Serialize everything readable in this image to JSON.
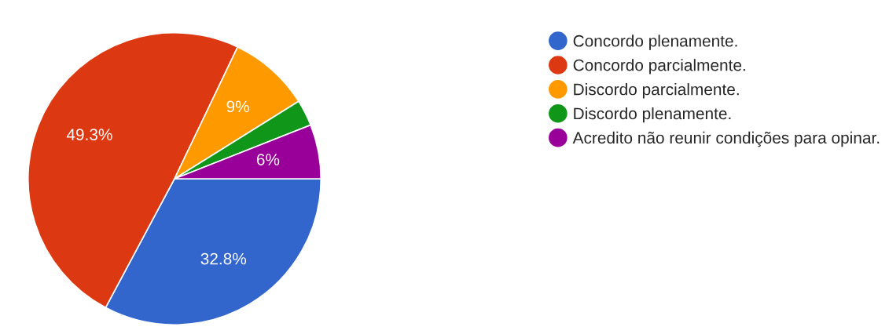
{
  "chart_data": {
    "type": "pie",
    "categories": [
      "Concordo plenamente.",
      "Concordo parcialmente.",
      "Discordo parcialmente.",
      "Discordo plenamente.",
      "Acredito não reunir condições para opinar."
    ],
    "values": [
      32.8,
      49.3,
      9,
      2.9,
      6
    ],
    "colors": [
      "#3366cc",
      "#dc3912",
      "#ff9900",
      "#109618",
      "#990099"
    ],
    "value_labels": [
      "32.8%",
      "49.3%",
      "9%",
      null,
      "6%"
    ],
    "legend": "right"
  }
}
